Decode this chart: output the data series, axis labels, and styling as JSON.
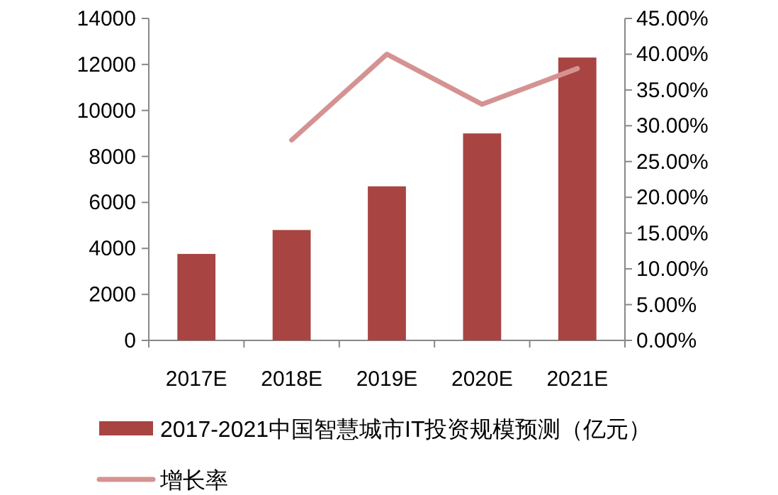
{
  "chart_data": {
    "type": "bar",
    "categories": [
      "2017E",
      "2018E",
      "2019E",
      "2020E",
      "2021E"
    ],
    "series": [
      {
        "name": "2017-2021中国智慧城市IT投资规模预测（亿元）",
        "color": "#a84442",
        "values": [
          3760,
          4800,
          6700,
          9000,
          12300
        ]
      },
      {
        "name": "增长率",
        "type": "line",
        "axis": "y2",
        "color": "#d49392",
        "values": [
          null,
          28,
          40,
          33,
          38
        ]
      }
    ],
    "ylim": [
      0,
      14000
    ],
    "yticks": [
      0,
      2000,
      4000,
      6000,
      8000,
      10000,
      12000,
      14000
    ],
    "y2lim": [
      0,
      45
    ],
    "y2ticks": [
      {
        "value": 0,
        "label": "0.00%"
      },
      {
        "value": 5,
        "label": "5.00%"
      },
      {
        "value": 10,
        "label": "10.00%"
      },
      {
        "value": 15,
        "label": "15.00%"
      },
      {
        "value": 20,
        "label": "20.00%"
      },
      {
        "value": 25,
        "label": "25.00%"
      },
      {
        "value": 30,
        "label": "30.00%"
      },
      {
        "value": 35,
        "label": "35.00%"
      },
      {
        "value": 40,
        "label": "40.00%"
      },
      {
        "value": 45,
        "label": "45.00%"
      }
    ],
    "grid": false,
    "legend": "bottom",
    "marker": "none"
  }
}
